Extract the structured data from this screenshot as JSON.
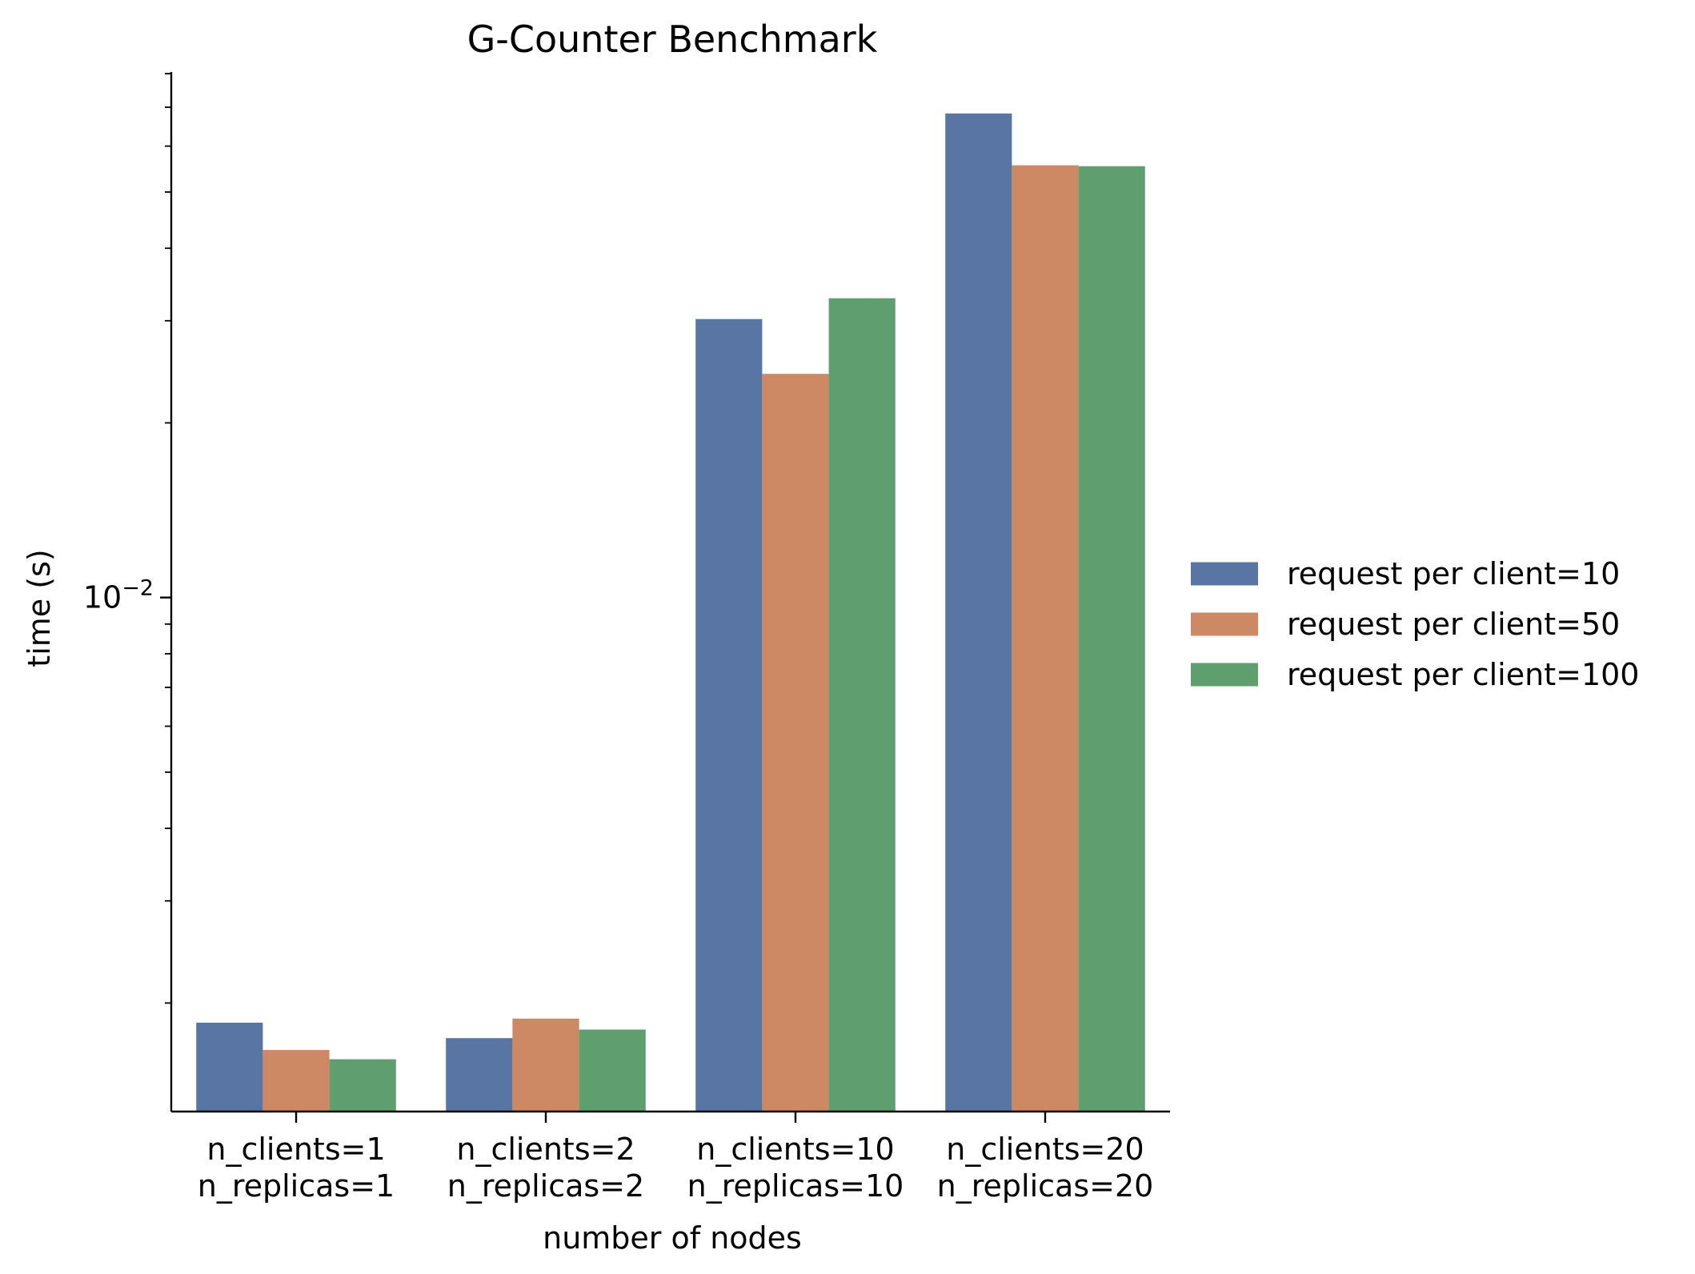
{
  "chart_data": {
    "type": "bar",
    "title": "G-Counter Benchmark",
    "xlabel": "number of nodes",
    "ylabel": "time (s)",
    "yscale": "log",
    "ylim": [
      0.0013,
      0.08
    ],
    "y_tick_labels": [
      {
        "value": 0.01,
        "base": "10",
        "exponent": "−2"
      }
    ],
    "categories": [
      [
        "n_clients=1",
        "n_replicas=1"
      ],
      [
        "n_clients=2",
        "n_replicas=2"
      ],
      [
        "n_clients=10",
        "n_replicas=10"
      ],
      [
        "n_clients=20",
        "n_replicas=20"
      ]
    ],
    "series": [
      {
        "name": "request per client=10",
        "color": "#5975a4",
        "values": [
          0.00185,
          0.00174,
          0.0302,
          0.0683
        ]
      },
      {
        "name": "request per client=50",
        "color": "#cc8963",
        "values": [
          0.00166,
          0.00188,
          0.0243,
          0.0556
        ]
      },
      {
        "name": "request per client=100",
        "color": "#5f9e6e",
        "values": [
          0.0016,
          0.0018,
          0.0328,
          0.0554
        ]
      }
    ],
    "legend_position": "right",
    "grid": false
  }
}
